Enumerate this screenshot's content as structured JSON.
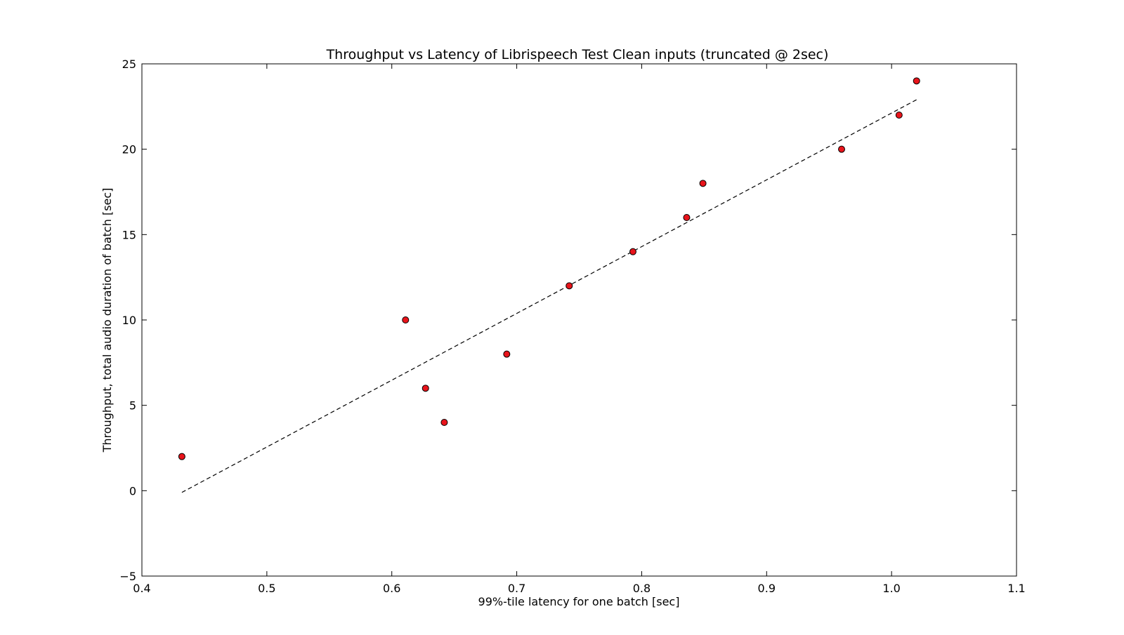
{
  "chart_data": {
    "type": "scatter",
    "title": "Throughput vs Latency of Librispeech Test Clean inputs (truncated @ 2sec)",
    "xlabel": "99%-tile latency for one batch [sec]",
    "ylabel": "Throughput, total audio duration of batch [sec]",
    "xlim": [
      0.4,
      1.1
    ],
    "ylim": [
      -5,
      25
    ],
    "xticks": [
      "0.4",
      "0.5",
      "0.6",
      "0.7",
      "0.8",
      "0.9",
      "1.0",
      "1.1"
    ],
    "yticks": [
      "−5",
      "0",
      "5",
      "10",
      "15",
      "20",
      "25"
    ],
    "grid": false,
    "legend": "none",
    "series": [
      {
        "marker_color": "#e8141b",
        "x": [
          0.432,
          0.611,
          0.627,
          0.642,
          0.692,
          0.742,
          0.793,
          0.836,
          0.849,
          0.96,
          1.006,
          1.02
        ],
        "y": [
          2,
          10,
          6,
          4,
          8,
          12,
          14,
          16,
          18,
          20,
          22,
          24
        ]
      }
    ],
    "trendline": {
      "style": "dashed",
      "color": "#000000",
      "x": [
        0.432,
        1.02
      ],
      "y": [
        -0.1,
        22.9
      ]
    }
  }
}
